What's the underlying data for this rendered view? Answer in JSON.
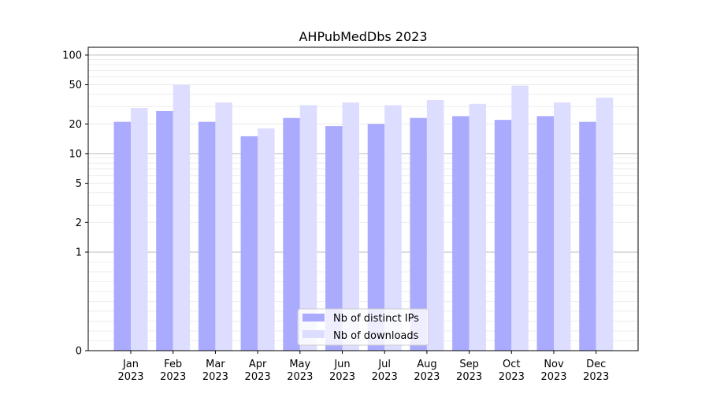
{
  "chart_data": {
    "type": "bar",
    "title": "AHPubMedDbs 2023",
    "xlabel": "",
    "ylabel": "",
    "scale": "symlog",
    "ylim": [
      0,
      120
    ],
    "yticks": [
      0,
      1,
      2,
      5,
      10,
      20,
      50,
      100
    ],
    "categories": [
      {
        "month": "Jan",
        "year": "2023"
      },
      {
        "month": "Feb",
        "year": "2023"
      },
      {
        "month": "Mar",
        "year": "2023"
      },
      {
        "month": "Apr",
        "year": "2023"
      },
      {
        "month": "May",
        "year": "2023"
      },
      {
        "month": "Jun",
        "year": "2023"
      },
      {
        "month": "Jul",
        "year": "2023"
      },
      {
        "month": "Aug",
        "year": "2023"
      },
      {
        "month": "Sep",
        "year": "2023"
      },
      {
        "month": "Oct",
        "year": "2023"
      },
      {
        "month": "Nov",
        "year": "2023"
      },
      {
        "month": "Dec",
        "year": "2023"
      }
    ],
    "series": [
      {
        "name": "Nb of distinct IPs",
        "color": "#aaaaff",
        "values": [
          21,
          27,
          21,
          15,
          23,
          19,
          20,
          23,
          24,
          22,
          24,
          21
        ]
      },
      {
        "name": "Nb of downloads",
        "color": "#ddddff",
        "values": [
          29,
          50,
          33,
          18,
          31,
          33,
          31,
          35,
          32,
          49,
          33,
          37
        ]
      }
    ],
    "grid": true,
    "legend_position": "bottom-center"
  }
}
